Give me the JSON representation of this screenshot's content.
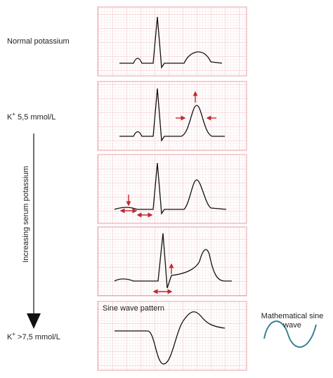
{
  "labels": {
    "normal": "Normal potassium",
    "k_mid": {
      "symbol": "K",
      "sup": "+",
      "value": "5,5 mmol/L"
    },
    "increasing": "Increasing serum potassium",
    "k_high": {
      "symbol": "K",
      "sup": "+",
      "value": ">7,5 mmol/L"
    },
    "sine_pattern": "Sine wave pattern",
    "math_sine": [
      "Mathematical sine",
      "wave"
    ]
  }
}
